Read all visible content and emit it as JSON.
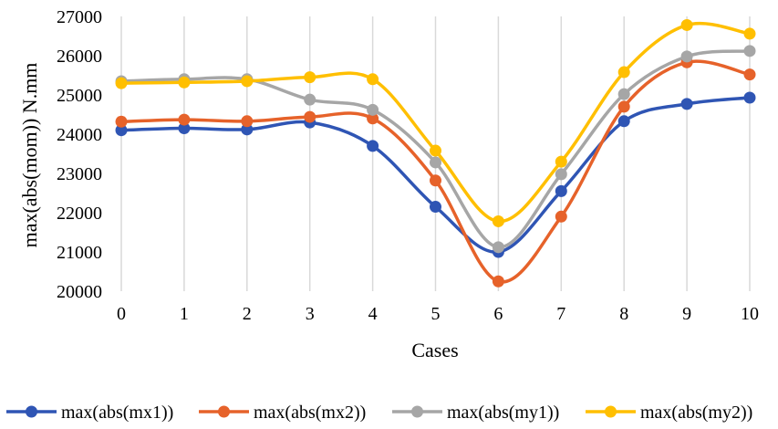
{
  "chart_data": {
    "type": "line",
    "smooth": true,
    "x": [
      0,
      1,
      2,
      3,
      4,
      5,
      6,
      7,
      8,
      9,
      10
    ],
    "series": [
      {
        "name": "max(abs(mx1))",
        "color": "#2f55b4",
        "values": [
          24100,
          24150,
          24120,
          24300,
          23700,
          22150,
          21000,
          22550,
          24330,
          24770,
          24930
        ]
      },
      {
        "name": "max(abs(mx2))",
        "color": "#e6622a",
        "values": [
          24320,
          24370,
          24330,
          24440,
          24400,
          22820,
          20250,
          21900,
          24700,
          25830,
          25520
        ]
      },
      {
        "name": "max(abs(my1))",
        "color": "#a6a6a6",
        "values": [
          25350,
          25400,
          25400,
          24880,
          24620,
          23280,
          21120,
          22980,
          25020,
          25980,
          26120
        ]
      },
      {
        "name": "max(abs(my2))",
        "color": "#ffbf00",
        "values": [
          25300,
          25320,
          25350,
          25450,
          25400,
          23580,
          21780,
          23300,
          25580,
          26780,
          26560
        ]
      }
    ],
    "xlabel": "Cases",
    "ylabel": "max(abs(mom)) N.mm",
    "x_ticks": [
      "0",
      "1",
      "2",
      "3",
      "4",
      "5",
      "6",
      "7",
      "8",
      "9",
      "10"
    ],
    "y_ticks": [
      "20000",
      "21000",
      "22000",
      "23000",
      "24000",
      "25000",
      "26000",
      "27000"
    ],
    "ylim": [
      20000,
      27000
    ],
    "xlim": [
      0,
      10
    ],
    "grid": "vertical",
    "legend": "bottom"
  }
}
